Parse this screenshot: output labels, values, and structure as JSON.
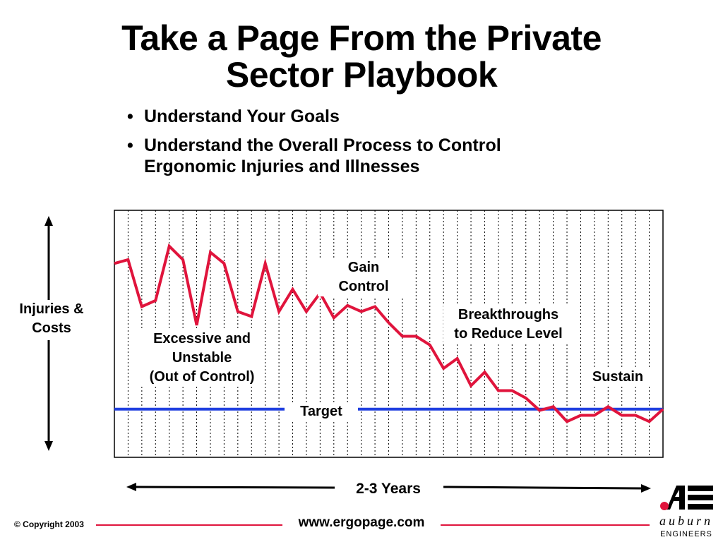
{
  "slide": {
    "title_line1": "Take a Page From the Private",
    "title_line2": "Sector Playbook",
    "bullets": [
      "Understand Your Goals",
      "Understand the Overall Process to Control Ergonomic Injuries and Illnesses"
    ]
  },
  "chart_data": {
    "type": "line",
    "ylabel": "Injuries &\nCosts",
    "xlabel": "2-3 Years",
    "grid": "vertical-dotted",
    "series": [
      {
        "name": "",
        "color": "#e0143c",
        "values": [
          0.785,
          0.8,
          0.61,
          0.635,
          0.855,
          0.8,
          0.535,
          0.83,
          0.785,
          0.59,
          0.57,
          0.785,
          0.59,
          0.68,
          0.59,
          0.665,
          0.565,
          0.615,
          0.59,
          0.61,
          0.545,
          0.49,
          0.49,
          0.455,
          0.36,
          0.4,
          0.29,
          0.345,
          0.27,
          0.27,
          0.24,
          0.19,
          0.205,
          0.145,
          0.17,
          0.17,
          0.205,
          0.17,
          0.17,
          0.145,
          0.195
        ]
      }
    ],
    "target": {
      "label": "Target",
      "value": 0.195,
      "color": "#2040e0"
    },
    "annotations": [
      {
        "text": "Excessive and\nUnstable\n(Out of Control)"
      },
      {
        "text": "Gain\nControl"
      },
      {
        "text": "Breakthroughs\nto Reduce Level"
      },
      {
        "text": "Sustain"
      }
    ]
  },
  "footer": {
    "copyright": "© Copyright 2003",
    "url": "www.ergopage.com",
    "logo_text": "auburn",
    "logo_subtext": "ENGINEERS",
    "accent_color": "#e0143c"
  }
}
